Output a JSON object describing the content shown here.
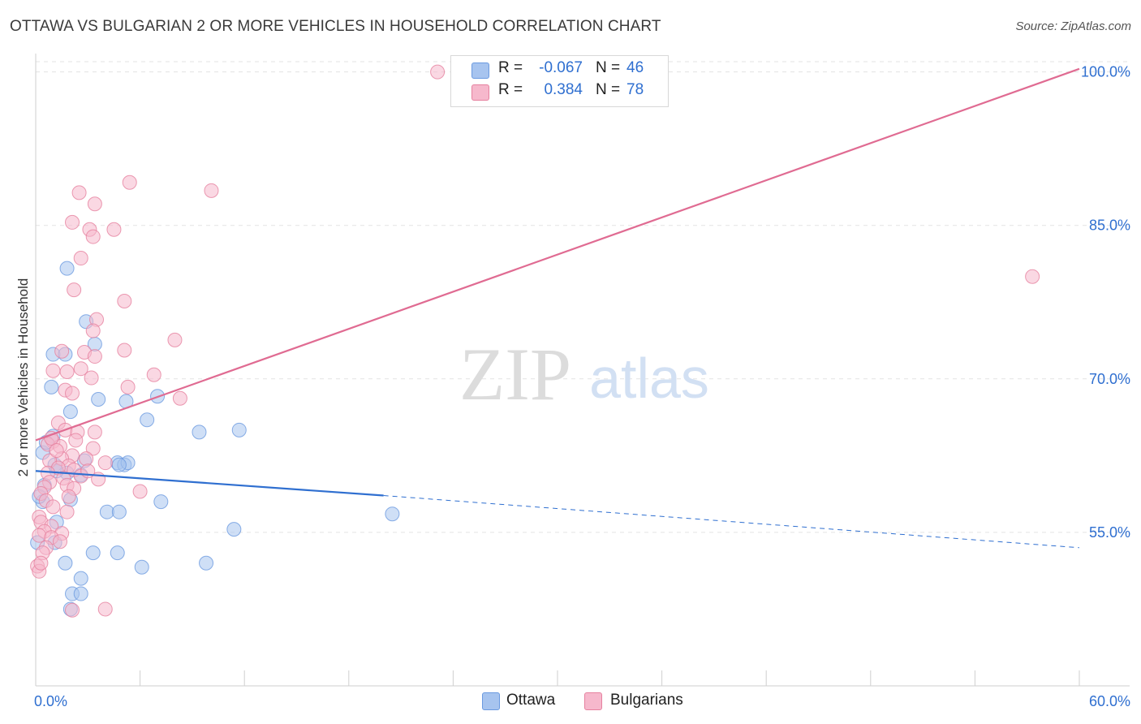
{
  "title": "OTTAWA VS BULGARIAN 2 OR MORE VEHICLES IN HOUSEHOLD CORRELATION CHART",
  "source": "Source: ZipAtlas.com",
  "watermark": {
    "zip": "ZIP",
    "atlas": "atlas"
  },
  "legend": {
    "rows": [
      {
        "r_label": "R =",
        "r_value": "-0.067",
        "n_label": "N =",
        "n_value": "46",
        "color": "#a7c4ef",
        "border": "#6b9ae0"
      },
      {
        "r_label": "R =",
        "r_value": "0.384",
        "n_label": "N =",
        "n_value": "78",
        "color": "#f6b8cc",
        "border": "#e6819f"
      }
    ]
  },
  "bottom_legend": [
    {
      "label": "Ottawa",
      "color": "#a7c4ef",
      "border": "#6b9ae0"
    },
    {
      "label": "Bulgarians",
      "color": "#f6b8cc",
      "border": "#e6819f"
    }
  ],
  "chart_data": {
    "type": "scatter",
    "title": "OTTAWA VS BULGARIAN 2 OR MORE VEHICLES IN HOUSEHOLD CORRELATION CHART",
    "xlabel": "",
    "ylabel": "2 or more Vehicles in Household",
    "xlim": [
      0,
      60
    ],
    "ylim": [
      40,
      101
    ],
    "x_tick_labels": [
      {
        "value": 0,
        "label": "0.0%"
      },
      {
        "value": 60,
        "label": "60.0%"
      }
    ],
    "x_minor_ticks": [
      6,
      12,
      18,
      24,
      30,
      36,
      42,
      48,
      54
    ],
    "y_ticks": [
      {
        "value": 55,
        "label": "55.0%"
      },
      {
        "value": 70,
        "label": "70.0%"
      },
      {
        "value": 85,
        "label": "85.0%"
      },
      {
        "value": 100,
        "label": "100.0%"
      }
    ],
    "grid": true,
    "series": [
      {
        "name": "Ottawa",
        "color": "#a7c4ef",
        "stroke": "#6b9ae0",
        "points": [
          [
            1.8,
            80.8
          ],
          [
            2.9,
            75.6
          ],
          [
            3.4,
            73.4
          ],
          [
            1.0,
            72.4
          ],
          [
            1.7,
            72.4
          ],
          [
            0.9,
            69.2
          ],
          [
            2.0,
            66.8
          ],
          [
            3.6,
            68.0
          ],
          [
            5.2,
            67.8
          ],
          [
            7.0,
            68.3
          ],
          [
            6.4,
            66.0
          ],
          [
            9.4,
            64.8
          ],
          [
            11.7,
            65.0
          ],
          [
            0.4,
            62.8
          ],
          [
            1.0,
            64.4
          ],
          [
            0.6,
            63.8
          ],
          [
            1.1,
            61.6
          ],
          [
            1.8,
            60.8
          ],
          [
            2.6,
            60.6
          ],
          [
            2.8,
            62.0
          ],
          [
            4.7,
            61.8
          ],
          [
            5.1,
            61.6
          ],
          [
            5.3,
            61.8
          ],
          [
            4.8,
            61.6
          ],
          [
            1.2,
            61.0
          ],
          [
            0.5,
            59.6
          ],
          [
            0.4,
            58.0
          ],
          [
            2.0,
            58.2
          ],
          [
            7.2,
            58.0
          ],
          [
            4.1,
            57.0
          ],
          [
            4.8,
            57.0
          ],
          [
            1.2,
            56.0
          ],
          [
            11.4,
            55.3
          ],
          [
            20.5,
            56.8
          ],
          [
            1.1,
            54.0
          ],
          [
            0.1,
            54.0
          ],
          [
            1.7,
            52.0
          ],
          [
            3.3,
            53.0
          ],
          [
            4.7,
            53.0
          ],
          [
            6.1,
            51.6
          ],
          [
            9.8,
            52.0
          ],
          [
            2.1,
            49.0
          ],
          [
            2.6,
            50.5
          ],
          [
            2.6,
            49.0
          ],
          [
            2.0,
            47.5
          ],
          [
            0.2,
            58.5
          ]
        ]
      },
      {
        "name": "Bulgarians",
        "color": "#f6b8cc",
        "stroke": "#e6819f",
        "points": [
          [
            23.1,
            100.0
          ],
          [
            5.4,
            89.2
          ],
          [
            10.1,
            88.4
          ],
          [
            2.5,
            88.2
          ],
          [
            3.4,
            87.1
          ],
          [
            2.1,
            85.3
          ],
          [
            3.1,
            84.6
          ],
          [
            4.5,
            84.6
          ],
          [
            3.3,
            83.9
          ],
          [
            2.6,
            81.8
          ],
          [
            57.3,
            80.0
          ],
          [
            2.2,
            78.7
          ],
          [
            5.1,
            77.6
          ],
          [
            3.5,
            75.8
          ],
          [
            3.3,
            74.7
          ],
          [
            8.0,
            73.8
          ],
          [
            1.5,
            72.7
          ],
          [
            2.8,
            72.6
          ],
          [
            5.1,
            72.8
          ],
          [
            3.4,
            72.2
          ],
          [
            1.8,
            70.7
          ],
          [
            2.6,
            71.0
          ],
          [
            6.8,
            70.4
          ],
          [
            1.0,
            70.8
          ],
          [
            3.2,
            70.1
          ],
          [
            5.3,
            69.2
          ],
          [
            1.7,
            68.9
          ],
          [
            2.1,
            68.6
          ],
          [
            8.3,
            68.1
          ],
          [
            1.3,
            65.7
          ],
          [
            1.7,
            65.0
          ],
          [
            2.4,
            64.8
          ],
          [
            3.4,
            64.8
          ],
          [
            1.0,
            63.9
          ],
          [
            0.7,
            63.6
          ],
          [
            1.4,
            63.4
          ],
          [
            3.3,
            63.2
          ],
          [
            2.1,
            62.5
          ],
          [
            1.5,
            62.2
          ],
          [
            0.8,
            62.0
          ],
          [
            2.9,
            62.2
          ],
          [
            4.0,
            61.8
          ],
          [
            1.9,
            61.5
          ],
          [
            1.3,
            61.3
          ],
          [
            2.2,
            61.1
          ],
          [
            0.7,
            60.8
          ],
          [
            2.6,
            60.5
          ],
          [
            1.6,
            60.3
          ],
          [
            3.6,
            60.2
          ],
          [
            0.8,
            59.9
          ],
          [
            1.8,
            59.6
          ],
          [
            0.5,
            59.4
          ],
          [
            2.2,
            59.3
          ],
          [
            6.0,
            59.0
          ],
          [
            0.3,
            58.8
          ],
          [
            1.9,
            58.5
          ],
          [
            0.6,
            58.1
          ],
          [
            1.8,
            57.0
          ],
          [
            0.2,
            56.5
          ],
          [
            0.3,
            56.0
          ],
          [
            0.9,
            55.6
          ],
          [
            0.5,
            55.1
          ],
          [
            1.5,
            54.9
          ],
          [
            0.2,
            54.7
          ],
          [
            0.9,
            54.5
          ],
          [
            1.4,
            54.1
          ],
          [
            0.6,
            53.5
          ],
          [
            0.4,
            53.0
          ],
          [
            0.1,
            51.7
          ],
          [
            0.2,
            51.2
          ],
          [
            2.1,
            47.4
          ],
          [
            4.0,
            47.5
          ],
          [
            0.3,
            52.0
          ],
          [
            1.0,
            57.5
          ],
          [
            2.3,
            64.0
          ],
          [
            0.9,
            64.2
          ],
          [
            1.2,
            63.0
          ],
          [
            3.0,
            61.0
          ]
        ]
      }
    ],
    "trendlines": [
      {
        "series": "Ottawa",
        "x": [
          0,
          20
        ],
        "y": [
          61.0,
          58.6
        ],
        "dashed_extension_to_x": 60,
        "y_at_60": 53.5,
        "color": "#2f6fd0"
      },
      {
        "series": "Bulgarians",
        "x": [
          0,
          60
        ],
        "y": [
          64.0,
          100.3
        ],
        "color": "#e06b92"
      }
    ]
  }
}
